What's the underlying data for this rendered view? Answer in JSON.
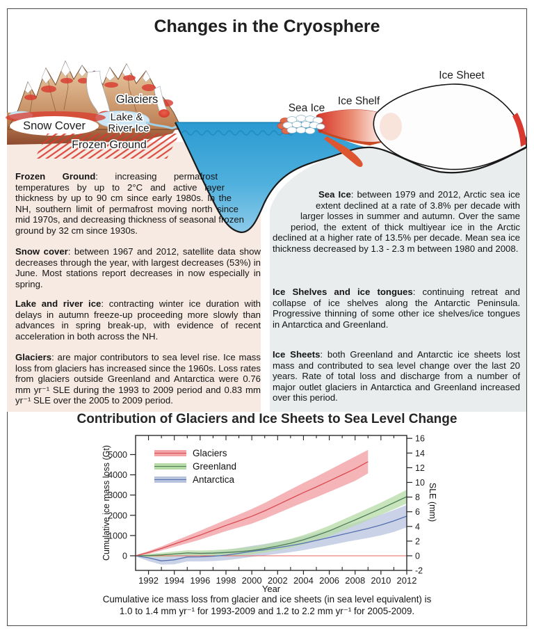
{
  "title": "Changes in the Cryosphere",
  "illustration": {
    "labels": {
      "glaciers": "Glaciers",
      "snow_cover": "Snow Cover",
      "lake_line1": "Lake &",
      "lake_line2": "River Ice",
      "frozen_ground": "Frozen Ground",
      "sea_ice": "Sea Ice",
      "ice_shelf": "Ice Shelf",
      "ice_sheet": "Ice Sheet"
    },
    "accent_red": "#d9392e",
    "water_blue_top": "#2b9ad1",
    "water_blue_bottom": "#8ccae9"
  },
  "left_panel": {
    "bg_color": "#f7eae2",
    "paragraphs": [
      {
        "lead": "Frozen Ground",
        "body": ": increasing permafrost temperatures by up to 2°C and active layer thickness by up to 90 cm since early 1980s. In the NH, southern limit of permafrost moving north since mid 1970s, and decreasing thickness of seasonal frozen ground by 32 cm since 1930s."
      },
      {
        "lead": "Snow cover",
        "body": ": between 1967 and 2012, satellite data show decreases through the year, with largest decreases (53%) in June. Most stations report decreases in now especially in spring."
      },
      {
        "lead": "Lake and river ice",
        "body": ": contracting winter ice duration with delays in autumn freeze-up proceeding more slowly than advances in spring break-up, with evidence of recent acceleration in both across the NH."
      },
      {
        "lead": "Glaciers",
        "body": ": are major contributors to sea level rise. Ice mass loss from glaciers has increased since the 1960s. Loss rates from glaciers outside Greenland and Antarctica were 0.76 mm yr⁻¹ SLE during the 1993 to 2009 period and 0.83 mm yr⁻¹ SLE over the 2005 to 2009 period."
      }
    ]
  },
  "right_panel": {
    "bg_color": "#e9edee",
    "paragraphs": [
      {
        "lead": "Sea Ice",
        "body": ": between 1979 and 2012, Arctic sea ice extent declined at a rate of 3.8% per decade with larger losses in summer and autumn. Over the same period, the extent of thick multiyear ice in the Arctic declined at a higher rate of 13.5% per decade. Mean sea ice thickness decreased by 1.3 - 2.3 m between 1980 and 2008."
      },
      {
        "lead": "Ice Shelves and ice tongues",
        "body": ": continuing retreat and collapse of ice shelves along the Antarctic Peninsula. Progressive thinning of some other ice shelves/ice tongues in Antarctica and Greenland."
      },
      {
        "lead": "Ice Sheets",
        "body": ": both Greenland and Antarctic ice sheets lost mass and contributed to sea level change over the last 20 years. Rate of total loss and discharge from a number of major outlet glaciers in Antarctica and Greenland increased over this period."
      }
    ]
  },
  "chart_data": {
    "type": "line",
    "title": "Contribution of Glaciers and Ice Sheets to Sea Level Change",
    "xlabel": "Year",
    "ylabel_left": "Cumulative ice mass loss (Gt)",
    "ylabel_right": "SLE (mm)",
    "x_range": [
      1991,
      2012
    ],
    "x_ticks": [
      1992,
      1994,
      1996,
      1998,
      2000,
      2002,
      2004,
      2006,
      2008,
      2010,
      2012
    ],
    "y_left_ticks": [
      0,
      1000,
      2000,
      3000,
      4000,
      5000
    ],
    "y_right_ticks": [
      -2,
      0,
      2,
      4,
      6,
      8,
      10,
      12,
      14,
      16
    ],
    "y_right_range": [
      -2.3,
      16.6
    ],
    "gt_per_mm_sle": 362.5,
    "grid": false,
    "legend_position": "upper-left",
    "zero_line_color": "#e8645c",
    "series": [
      {
        "name": "Glaciers",
        "line_color": "#d94a50",
        "band_color": "#f2a3a6",
        "band_opacity": 0.8,
        "x": [
          1991,
          1992,
          1993,
          1994,
          1995,
          1996,
          1997,
          1998,
          1999,
          2000,
          2001,
          2002,
          2003,
          2004,
          2005,
          2006,
          2007,
          2008,
          2009
        ],
        "y": [
          0,
          160,
          360,
          580,
          800,
          1020,
          1260,
          1500,
          1720,
          1950,
          2220,
          2520,
          2820,
          3120,
          3400,
          3700,
          4000,
          4300,
          4650
        ],
        "hi": [
          20,
          230,
          460,
          720,
          980,
          1240,
          1510,
          1780,
          2040,
          2310,
          2610,
          2940,
          3270,
          3600,
          3910,
          4240,
          4570,
          4900,
          5230
        ],
        "lo": [
          -20,
          90,
          260,
          440,
          620,
          800,
          1010,
          1220,
          1400,
          1590,
          1830,
          2100,
          2370,
          2640,
          2890,
          3160,
          3430,
          3700,
          4070
        ]
      },
      {
        "name": "Greenland",
        "line_color": "#4b7b55",
        "band_color": "#b6dba6",
        "band_opacity": 0.75,
        "x": [
          1991,
          1992,
          1993,
          1994,
          1995,
          1996,
          1997,
          1998,
          1999,
          2000,
          2001,
          2002,
          2003,
          2004,
          2005,
          2006,
          2007,
          2008,
          2009,
          2010,
          2011,
          2012
        ],
        "y": [
          0,
          10,
          40,
          90,
          140,
          120,
          130,
          160,
          200,
          260,
          360,
          480,
          620,
          790,
          1000,
          1230,
          1500,
          1770,
          2050,
          2330,
          2620,
          2920
        ],
        "hi": [
          30,
          90,
          150,
          210,
          270,
          260,
          280,
          320,
          380,
          450,
          560,
          690,
          840,
          1020,
          1240,
          1490,
          1770,
          2050,
          2340,
          2630,
          2940,
          3260
        ],
        "lo": [
          -30,
          -70,
          -70,
          -30,
          10,
          -20,
          -20,
          0,
          20,
          70,
          160,
          270,
          400,
          560,
          760,
          970,
          1230,
          1490,
          1760,
          2030,
          2300,
          2580
        ]
      },
      {
        "name": "Antarctica",
        "line_color": "#5570b0",
        "band_color": "#b7c3dd",
        "band_opacity": 0.75,
        "x": [
          1991,
          1992,
          1993,
          1994,
          1995,
          1996,
          1997,
          1998,
          1999,
          2000,
          2001,
          2002,
          2003,
          2004,
          2005,
          2006,
          2007,
          2008,
          2009,
          2010,
          2011,
          2012
        ],
        "y": [
          0,
          -100,
          -250,
          -200,
          -60,
          -50,
          -20,
          30,
          120,
          220,
          300,
          400,
          500,
          620,
          760,
          900,
          1050,
          1200,
          1350,
          1520,
          1720,
          1960
        ],
        "hi": [
          30,
          60,
          -60,
          20,
          160,
          180,
          220,
          280,
          380,
          490,
          580,
          700,
          820,
          960,
          1120,
          1280,
          1450,
          1630,
          1820,
          2030,
          2260,
          2510
        ],
        "lo": [
          -30,
          -260,
          -440,
          -420,
          -280,
          -280,
          -260,
          -220,
          -140,
          -50,
          20,
          100,
          180,
          280,
          400,
          520,
          650,
          770,
          880,
          1010,
          1180,
          1410
        ]
      }
    ]
  },
  "caption": {
    "line1": "Cumulative ice mass loss from glacier and ice sheets (in sea level equivalent) is",
    "line2": "1.0 to 1.4 mm yr⁻¹  for 1993-2009 and 1.2 to 2.2 mm yr⁻¹ for 2005-2009."
  }
}
